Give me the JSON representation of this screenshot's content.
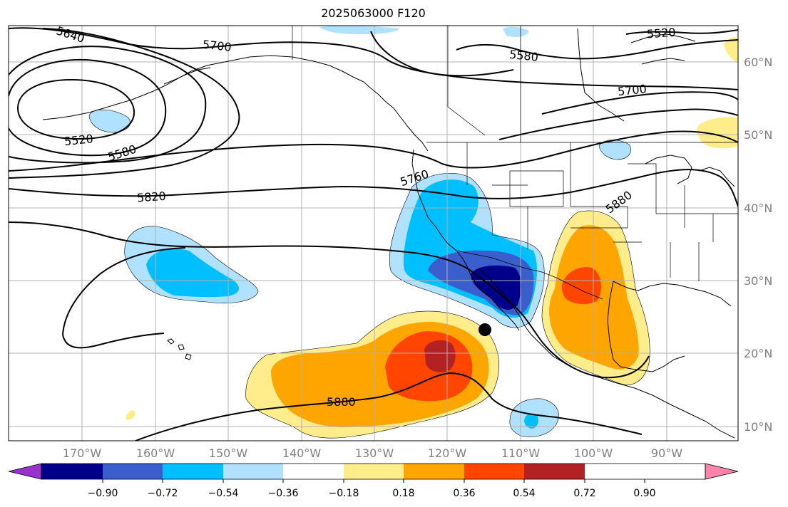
{
  "title": "2025063000 F120",
  "lon_labels": [
    "170°W",
    "160°W",
    "150°W",
    "140°W",
    "130°W",
    "120°W",
    "110°W",
    "100°W",
    "90°W"
  ],
  "lat_labels": [
    "60°N",
    "50°N",
    "40°N",
    "30°N",
    "20°N",
    "10°N"
  ],
  "contour_labels": [
    "5640",
    "5700",
    "5520",
    "5580",
    "5820",
    "5760",
    "5880",
    "5880",
    "5520",
    "5580",
    "5700"
  ],
  "colorbar": {
    "ticks": [
      "−0.90",
      "−0.72",
      "−0.54",
      "−0.36",
      "−0.18",
      "0.18",
      "0.36",
      "0.54",
      "0.72",
      "0.90"
    ],
    "colors": [
      "#9932cc",
      "#00008b",
      "#3a5fcd",
      "#00bfff",
      "#b0e2ff",
      "#ffffff",
      "#ffec8b",
      "#ffa500",
      "#ff4500",
      "#b22222",
      "#ff82ab"
    ]
  },
  "shading_colors": {
    "neg1": "#b0e2ff",
    "neg2": "#00bfff",
    "neg3": "#3a5fcd",
    "neg4": "#00008b",
    "pos1": "#ffec8b",
    "pos2": "#ffa500",
    "pos3": "#ff4500",
    "pos4": "#b22222"
  }
}
